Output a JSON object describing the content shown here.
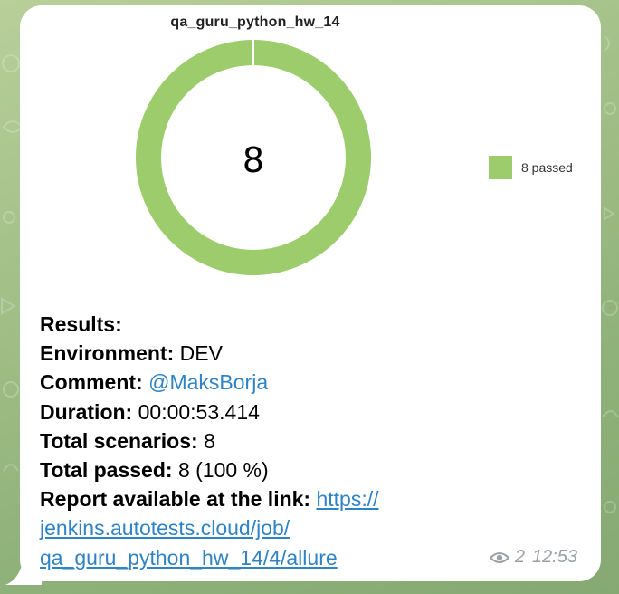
{
  "chart": {
    "title": "qa_guru_python_hw_14",
    "center_value": "8",
    "legend_label": "8 passed",
    "passed_color": "#9ccc6b"
  },
  "chart_data": {
    "type": "pie",
    "title": "qa_guru_python_hw_14",
    "categories": [
      "passed"
    ],
    "values": [
      8
    ],
    "legend": [
      "8 passed"
    ],
    "legend_placement": "right"
  },
  "message": {
    "results_label": "Results:",
    "environment_label": "Environment:",
    "environment_value": "DEV",
    "comment_label": "Comment:",
    "comment_value": "@MaksBorja",
    "duration_label": "Duration:",
    "duration_value": "00:00:53.414",
    "total_scenarios_label": "Total scenarios:",
    "total_scenarios_value": "8",
    "total_passed_label": "Total passed:",
    "total_passed_value": "8 (100 %)",
    "report_label": "Report available at the link:",
    "report_link_line1": "https://",
    "report_link_line2": "jenkins.autotests.cloud/job/",
    "report_link_line3": "qa_guru_python_hw_14/4/allure"
  },
  "meta": {
    "views": "2",
    "time": "12:53",
    "icon": "eye-icon"
  }
}
